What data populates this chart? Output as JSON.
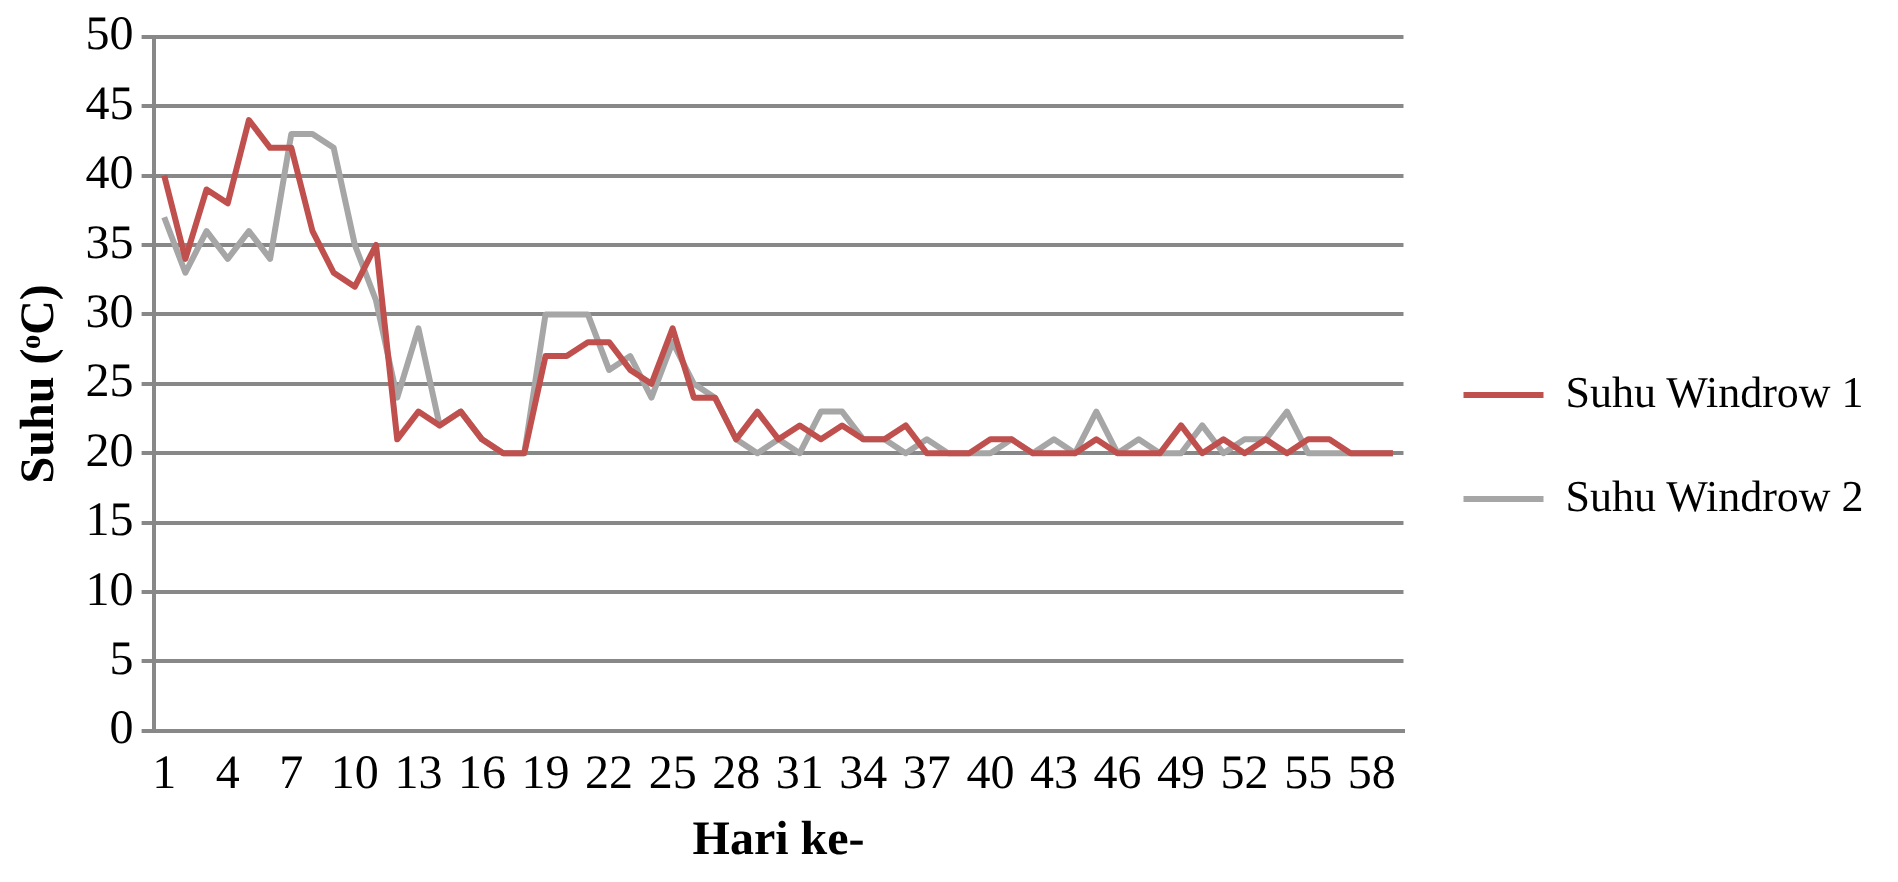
{
  "chart_data": {
    "type": "line",
    "xlabel": "Hari ke-",
    "ylabel": "Suhu (ᵒC)",
    "categories": [
      "1",
      null,
      null,
      "4",
      null,
      null,
      "7",
      null,
      null,
      "10",
      null,
      null,
      "13",
      null,
      null,
      "16",
      null,
      null,
      "19",
      null,
      null,
      "22",
      null,
      null,
      "25",
      null,
      null,
      "28",
      null,
      null,
      "31",
      null,
      null,
      "34",
      null,
      null,
      "37",
      null,
      null,
      "40",
      null,
      null,
      "43",
      null,
      null,
      "46",
      null,
      null,
      "49",
      null,
      null,
      "52",
      null,
      null,
      "55",
      null,
      null,
      "58",
      null
    ],
    "series": [
      {
        "name": "Suhu Windrow 1",
        "color": "#c0504d",
        "values": [
          40,
          34,
          39,
          38,
          44,
          42,
          42,
          36,
          33,
          32,
          35,
          21,
          23,
          22,
          23,
          21,
          20,
          20,
          27,
          27,
          28,
          28,
          26,
          25,
          29,
          24,
          24,
          21,
          23,
          21,
          22,
          21,
          22,
          21,
          21,
          22,
          20,
          20,
          20,
          21,
          21,
          20,
          20,
          20,
          21,
          20,
          20,
          20,
          22,
          20,
          21,
          20,
          21,
          20,
          21,
          21,
          20,
          20,
          20
        ]
      },
      {
        "name": "Suhu Windrow 2",
        "color": "#a6a6a6",
        "values": [
          37,
          33,
          36,
          34,
          36,
          34,
          43,
          43,
          42,
          35,
          31,
          24,
          29,
          22,
          23,
          21,
          20,
          20,
          30,
          30,
          30,
          26,
          27,
          24,
          28,
          25,
          24,
          21,
          20,
          21,
          20,
          23,
          23,
          21,
          21,
          20,
          21,
          20,
          20,
          20,
          21,
          20,
          21,
          20,
          23,
          20,
          21,
          20,
          20,
          22,
          20,
          21,
          21,
          23,
          20,
          20,
          20,
          20,
          20
        ]
      }
    ],
    "ylim": [
      0,
      50
    ],
    "yticks": [
      0,
      5,
      10,
      15,
      20,
      25,
      30,
      35,
      40,
      45,
      50
    ],
    "grid": "y",
    "legend": "right",
    "marker": "none",
    "line_style": "solid"
  }
}
